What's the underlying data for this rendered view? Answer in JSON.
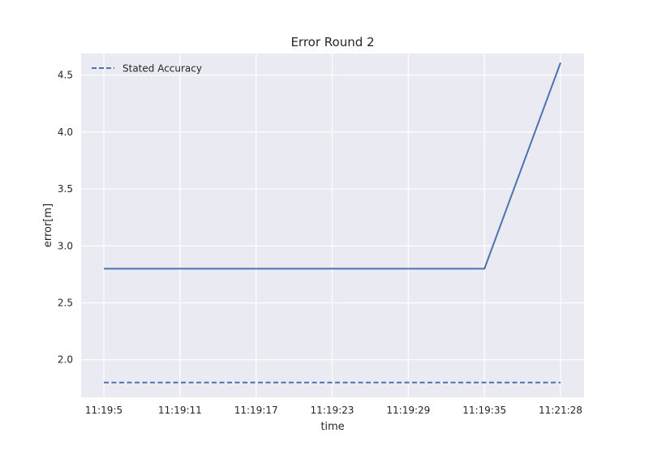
{
  "chart_data": {
    "type": "line",
    "title": "Error Round 2",
    "xlabel": "time",
    "ylabel": "error[m]",
    "categories": [
      "11:19:5",
      "11:19:11",
      "11:19:17",
      "11:19:23",
      "11:19:29",
      "11:19:35",
      "11:21:28"
    ],
    "ylim": [
      1.67,
      4.69
    ],
    "yticks": [
      2.0,
      2.5,
      3.0,
      3.5,
      4.0,
      4.5
    ],
    "ytick_labels": [
      "2.0",
      "2.5",
      "3.0",
      "3.5",
      "4.0",
      "4.5"
    ],
    "grid": true,
    "legend_position": "top-left",
    "series": [
      {
        "values": [
          2.8,
          2.8,
          2.8,
          2.8,
          2.8,
          2.8,
          4.61
        ],
        "style": "solid",
        "color": "#4c72b0"
      },
      {
        "name": "Stated Accuracy",
        "values": [
          1.8,
          1.8,
          1.8,
          1.8,
          1.8,
          1.8,
          1.8
        ],
        "style": "dashed",
        "color": "#4c72b0"
      }
    ],
    "colors": {
      "plot_background": "#eaeaf2",
      "grid": "#ffffff"
    }
  }
}
